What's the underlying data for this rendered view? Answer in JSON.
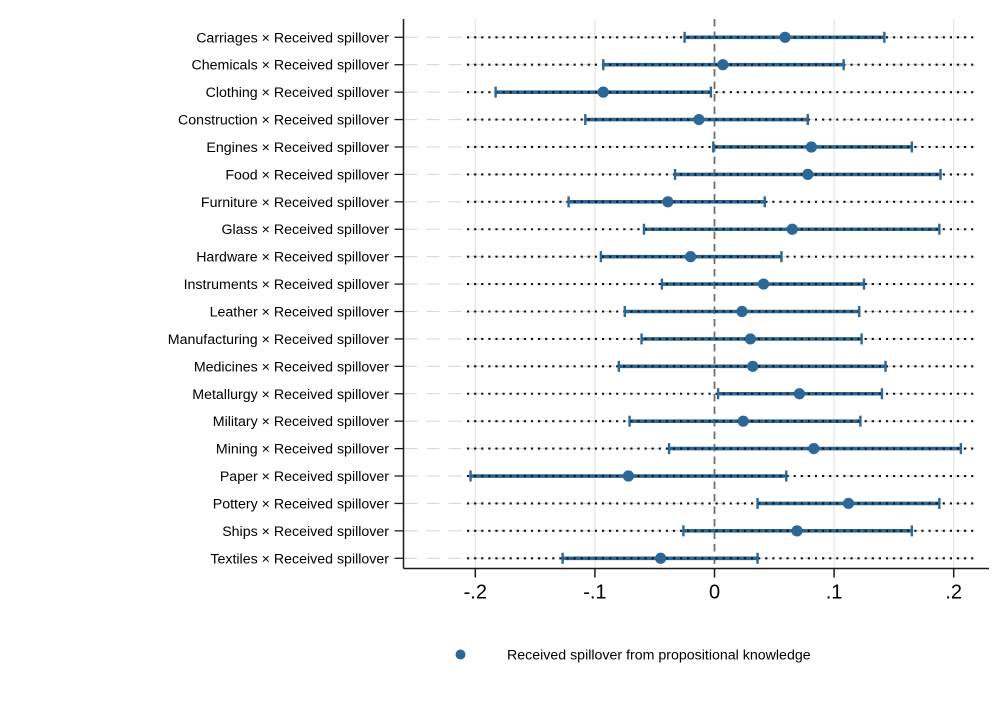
{
  "chart_data": {
    "type": "scatter",
    "variant": "coefficient-forest-plot",
    "title": "",
    "xlabel": "",
    "ylabel": "",
    "xlim": [
      -0.26,
      0.235
    ],
    "xticks": [
      -0.2,
      -0.1,
      0,
      0.1,
      0.2
    ],
    "xtick_labels": [
      "-.2",
      "-.1",
      "0",
      ".1",
      ".2"
    ],
    "zero_reference_line": 0,
    "grid": true,
    "legend": {
      "position": "bottom",
      "marker": "filled-circle",
      "label": "Received spillover from propositional knowledge"
    },
    "series_name": "Received spillover from propositional knowledge",
    "rows": [
      {
        "label": "Carriages × Received spillover",
        "estimate": 0.059,
        "ci_low": -0.025,
        "ci_high": 0.142
      },
      {
        "label": "Chemicals × Received spillover",
        "estimate": 0.007,
        "ci_low": -0.093,
        "ci_high": 0.108
      },
      {
        "label": "Clothing × Received spillover",
        "estimate": -0.093,
        "ci_low": -0.183,
        "ci_high": -0.003
      },
      {
        "label": "Construction × Received spillover",
        "estimate": -0.013,
        "ci_low": -0.108,
        "ci_high": 0.078
      },
      {
        "label": "Engines × Received spillover",
        "estimate": 0.081,
        "ci_low": -0.001,
        "ci_high": 0.165
      },
      {
        "label": "Food × Received spillover",
        "estimate": 0.078,
        "ci_low": -0.033,
        "ci_high": 0.189
      },
      {
        "label": "Furniture × Received spillover",
        "estimate": -0.039,
        "ci_low": -0.122,
        "ci_high": 0.042
      },
      {
        "label": "Glass × Received spillover",
        "estimate": 0.065,
        "ci_low": -0.059,
        "ci_high": 0.188
      },
      {
        "label": "Hardware × Received spillover",
        "estimate": -0.02,
        "ci_low": -0.095,
        "ci_high": 0.056
      },
      {
        "label": "Instruments × Received spillover",
        "estimate": 0.041,
        "ci_low": -0.044,
        "ci_high": 0.125
      },
      {
        "label": "Leather × Received spillover",
        "estimate": 0.023,
        "ci_low": -0.075,
        "ci_high": 0.121
      },
      {
        "label": "Manufacturing × Received spillover",
        "estimate": 0.03,
        "ci_low": -0.061,
        "ci_high": 0.123
      },
      {
        "label": "Medicines × Received spillover",
        "estimate": 0.032,
        "ci_low": -0.08,
        "ci_high": 0.143
      },
      {
        "label": "Metallurgy × Received spillover",
        "estimate": 0.071,
        "ci_low": 0.003,
        "ci_high": 0.14
      },
      {
        "label": "Military × Received spillover",
        "estimate": 0.024,
        "ci_low": -0.071,
        "ci_high": 0.122
      },
      {
        "label": "Mining × Received spillover",
        "estimate": 0.083,
        "ci_low": -0.038,
        "ci_high": 0.206
      },
      {
        "label": "Paper × Received spillover",
        "estimate": -0.072,
        "ci_low": -0.204,
        "ci_high": 0.06
      },
      {
        "label": "Pottery × Received spillover",
        "estimate": 0.112,
        "ci_low": 0.036,
        "ci_high": 0.188
      },
      {
        "label": "Ships × Received spillover",
        "estimate": 0.069,
        "ci_low": -0.026,
        "ci_high": 0.165
      },
      {
        "label": "Textiles × Received spillover",
        "estimate": -0.045,
        "ci_low": -0.127,
        "ci_high": 0.036
      }
    ],
    "colors": {
      "marker": "#2d6796",
      "ci_line": "#2d6796",
      "spike_dotted": "#141414",
      "zero_line": "#6f6f6f",
      "vertical_gridline": "#e4e4e4",
      "horizontal_gridline": "#d8d8d8",
      "axis": "#1a1a1a",
      "text": "#000000",
      "background": "#ffffff"
    }
  }
}
